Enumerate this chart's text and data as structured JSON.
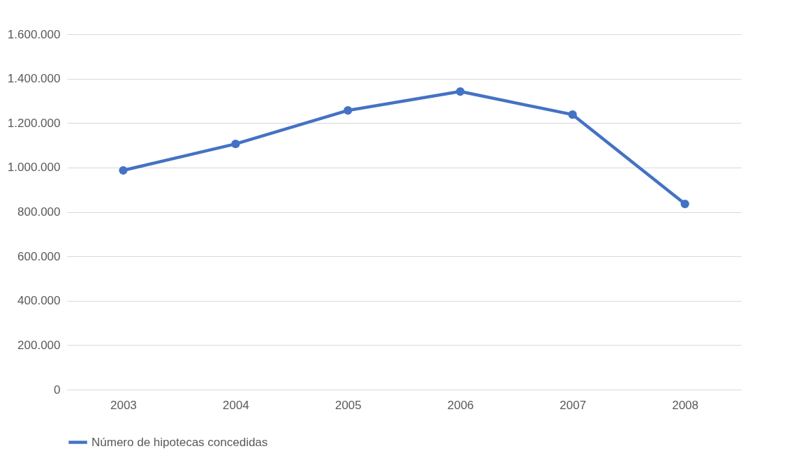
{
  "chart_data": {
    "type": "line",
    "categories": [
      "2003",
      "2004",
      "2005",
      "2006",
      "2007",
      "2008"
    ],
    "series": [
      {
        "name": "Número de hipotecas concedidas",
        "color": "#4472c4",
        "values": [
          987000,
          1106000,
          1257000,
          1342000,
          1238000,
          836000
        ]
      }
    ],
    "ylim": [
      0,
      1600000
    ],
    "yticks": [
      0,
      {
        "value": 200000,
        "label": "200.000"
      },
      {
        "value": 400000,
        "label": "400.000"
      },
      {
        "value": 600000,
        "label": "600.000"
      },
      {
        "value": 800000,
        "label": "800.000"
      },
      {
        "value": 1000000,
        "label": "1.000.000"
      },
      {
        "value": 1200000,
        "label": "1.200.000"
      },
      {
        "value": 1400000,
        "label": "1.400.000"
      },
      {
        "value": 1600000,
        "label": "1.600.000"
      }
    ],
    "grid": "y",
    "legend": "bottom",
    "marker": "circle",
    "line_style": "solid"
  }
}
